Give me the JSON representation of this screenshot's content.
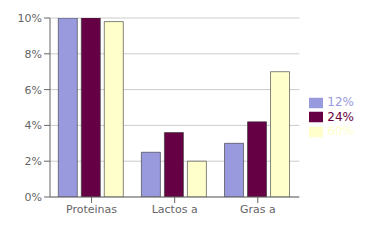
{
  "chart_data": {
    "type": "bar",
    "categories": [
      "Proteinas",
      "Lactos a",
      "Gras a"
    ],
    "series": [
      {
        "name": "12%",
        "color": "#9999dd",
        "values": [
          10.0,
          2.5,
          3.0
        ]
      },
      {
        "name": "24%",
        "color": "#660044",
        "values": [
          10.0,
          3.6,
          4.2
        ]
      },
      {
        "name": "60%",
        "color": "#ffffcc",
        "values": [
          9.8,
          2.0,
          7.0
        ]
      }
    ],
    "ylim": [
      0,
      10
    ],
    "yticks": [
      {
        "value": 0,
        "label": "0%"
      },
      {
        "value": 2,
        "label": "2%"
      },
      {
        "value": 4,
        "label": "4%"
      },
      {
        "value": 6,
        "label": "6%"
      },
      {
        "value": 8,
        "label": "8%"
      },
      {
        "value": 10,
        "label": "10%"
      }
    ],
    "grid": true,
    "legend": "right"
  }
}
